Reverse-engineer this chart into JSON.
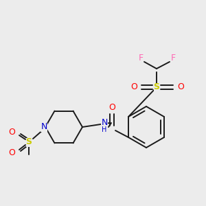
{
  "bg_color": "#ececec",
  "bond_color": "#1a1a1a",
  "colors": {
    "N": "#0000cc",
    "O": "#ff0000",
    "S": "#cccc00",
    "F": "#ff69b4",
    "C": "#1a1a1a"
  }
}
